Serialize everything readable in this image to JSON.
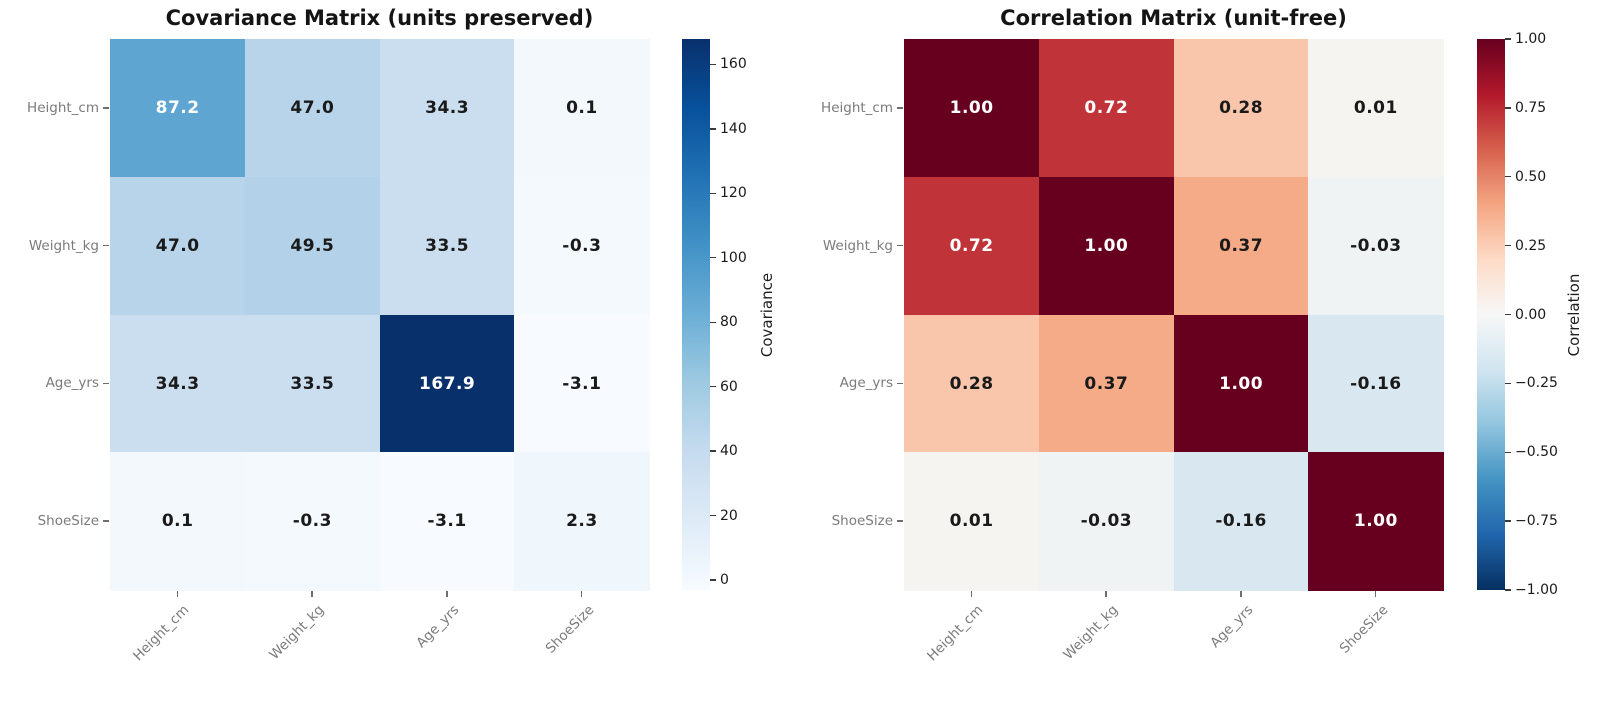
{
  "styles": {
    "background": "#ffffff",
    "title_color": "#141414",
    "category_label_color": "#7b7b7b",
    "colorbar_tick_color": "#1a1a1a",
    "annotation_dark": "#1a1a1a",
    "annotation_light": "#ffffff"
  },
  "chart_data": [
    {
      "type": "heatmap",
      "title": "Covariance Matrix (units preserved)",
      "categories": [
        "Height_cm",
        "Weight_kg",
        "Age_yrs",
        "ShoeSize"
      ],
      "matrix": [
        [
          87.2,
          47.0,
          34.3,
          0.1
        ],
        [
          47.0,
          49.5,
          33.5,
          -0.3
        ],
        [
          34.3,
          33.5,
          167.9,
          -3.1
        ],
        [
          0.1,
          -0.3,
          -3.1,
          2.3
        ]
      ],
      "annotations": [
        [
          "87.2",
          "47.0",
          "34.3",
          "0.1"
        ],
        [
          "47.0",
          "49.5",
          "33.5",
          "-0.3"
        ],
        [
          "34.3",
          "33.5",
          "167.9",
          "-3.1"
        ],
        [
          "0.1",
          "-0.3",
          "-3.1",
          "2.3"
        ]
      ],
      "colormap": "Blues",
      "vmin": -3.1,
      "vmax": 167.9,
      "colorbar": {
        "label": "Covariance",
        "tick_values": [
          160,
          140,
          120,
          100,
          80,
          60,
          40,
          20,
          0
        ],
        "tick_labels": [
          "160",
          "140",
          "120",
          "100",
          "80",
          "60",
          "40",
          "20",
          "0"
        ],
        "gradient_top_to_bottom": [
          "#08306b",
          "#08519c",
          "#2171b5",
          "#4292c6",
          "#6baed6",
          "#9ecae1",
          "#c6dbef",
          "#deebf7",
          "#f7fbff"
        ]
      },
      "cell_colors": [
        [
          "#5ea5d1",
          "#b7d4ea",
          "#cbdeef",
          "#f3f8fd"
        ],
        [
          "#b7d4ea",
          "#b3d2e9",
          "#cadef0",
          "#f4f9fd"
        ],
        [
          "#cbdeef",
          "#cadef0",
          "#08306b",
          "#f7fbff"
        ],
        [
          "#f3f8fd",
          "#f4f9fd",
          "#f7fbff",
          "#eff6fc"
        ]
      ],
      "cell_text_colors": [
        [
          "#ffffff",
          "#1a1a1a",
          "#1a1a1a",
          "#1a1a1a"
        ],
        [
          "#1a1a1a",
          "#1a1a1a",
          "#1a1a1a",
          "#1a1a1a"
        ],
        [
          "#1a1a1a",
          "#1a1a1a",
          "#ffffff",
          "#1a1a1a"
        ],
        [
          "#1a1a1a",
          "#1a1a1a",
          "#1a1a1a",
          "#1a1a1a"
        ]
      ]
    },
    {
      "type": "heatmap",
      "title": "Correlation Matrix (unit-free)",
      "categories": [
        "Height_cm",
        "Weight_kg",
        "Age_yrs",
        "ShoeSize"
      ],
      "matrix": [
        [
          1.0,
          0.72,
          0.28,
          0.01
        ],
        [
          0.72,
          1.0,
          0.37,
          -0.03
        ],
        [
          0.28,
          0.37,
          1.0,
          -0.16
        ],
        [
          0.01,
          -0.03,
          -0.16,
          1.0
        ]
      ],
      "annotations": [
        [
          "1.00",
          "0.72",
          "0.28",
          "0.01"
        ],
        [
          "0.72",
          "1.00",
          "0.37",
          "-0.03"
        ],
        [
          "0.28",
          "0.37",
          "1.00",
          "-0.16"
        ],
        [
          "0.01",
          "-0.03",
          "-0.16",
          "1.00"
        ]
      ],
      "colormap": "RdBu_r",
      "vmin": -1.0,
      "vmax": 1.0,
      "colorbar": {
        "label": "Correlation",
        "tick_values": [
          1.0,
          0.75,
          0.5,
          0.25,
          0.0,
          -0.25,
          -0.5,
          -0.75,
          -1.0
        ],
        "tick_labels": [
          "1.00",
          "0.75",
          "0.50",
          "0.25",
          "0.00",
          "−0.25",
          "−0.50",
          "−0.75",
          "−1.00"
        ],
        "gradient_top_to_bottom": [
          "#67001f",
          "#b2182b",
          "#d6604d",
          "#f4a582",
          "#fddbc7",
          "#f7f7f7",
          "#d1e5f0",
          "#92c5de",
          "#4393c3",
          "#2166ac",
          "#053061"
        ]
      },
      "cell_colors": [
        [
          "#67001f",
          "#c03439",
          "#f9c5ab",
          "#f5f4f1"
        ],
        [
          "#c03439",
          "#67001f",
          "#f5ab88",
          "#f0f3f4"
        ],
        [
          "#f9c5ab",
          "#f5ab88",
          "#67001f",
          "#d9e7f0"
        ],
        [
          "#f5f4f1",
          "#f0f3f4",
          "#d9e7f0",
          "#67001f"
        ]
      ],
      "cell_text_colors": [
        [
          "#ffffff",
          "#ffffff",
          "#1a1a1a",
          "#1a1a1a"
        ],
        [
          "#ffffff",
          "#ffffff",
          "#1a1a1a",
          "#1a1a1a"
        ],
        [
          "#1a1a1a",
          "#1a1a1a",
          "#ffffff",
          "#1a1a1a"
        ],
        [
          "#1a1a1a",
          "#1a1a1a",
          "#1a1a1a",
          "#ffffff"
        ]
      ]
    }
  ]
}
